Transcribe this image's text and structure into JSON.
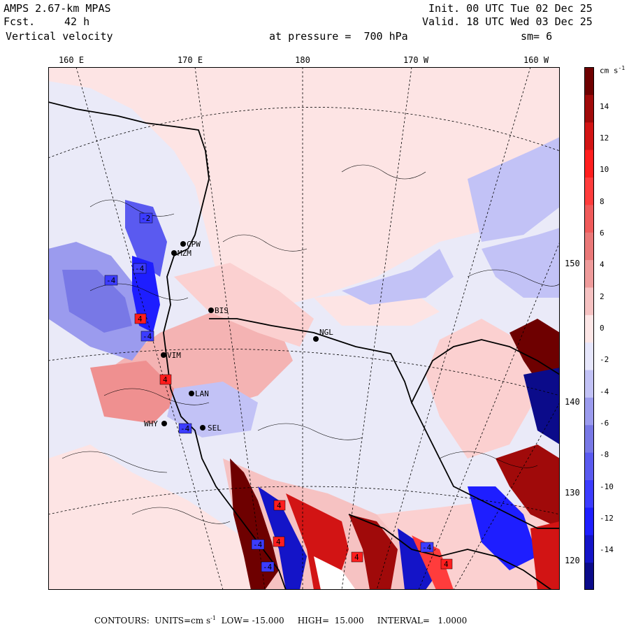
{
  "header": {
    "model": "AMPS 2.67-km MPAS",
    "forecast_label": "Fcst.",
    "forecast_value": "42 h",
    "field": "Vertical velocity",
    "init": "Init. 00 UTC Tue 02 Dec 25",
    "valid": "Valid. 18 UTC Wed 03 Dec 25",
    "pressure": "at pressure =  700 hPa",
    "smoothing": "sm= 6"
  },
  "longitude_labels": [
    "160 E",
    "170 E",
    "180",
    "170 W",
    "160 W"
  ],
  "latitude_labels": [
    "150 W",
    "140 W",
    "130 W",
    "120 W"
  ],
  "stations": [
    {
      "code": "CPW"
    },
    {
      "code": "MZM"
    },
    {
      "code": "BIS"
    },
    {
      "code": "NGL"
    },
    {
      "code": "VIM"
    },
    {
      "code": "LAN"
    },
    {
      "code": "WHY"
    },
    {
      "code": "SEL"
    }
  ],
  "highs_lows": [
    "-2",
    "-4",
    "-4",
    "-4",
    "4",
    "-4",
    "4",
    "4",
    "-4",
    "4",
    "4",
    "-4",
    "-4",
    "4"
  ],
  "colorbar": {
    "units": "cm s",
    "units_exp": "-1",
    "tick_labels": [
      "14",
      "12",
      "10",
      "8",
      "6",
      "4",
      "2",
      "0",
      "-2",
      "-4",
      "-6",
      "-8",
      "-10",
      "-12",
      "-14"
    ],
    "colors": [
      "#0b0b8a",
      "#1414c8",
      "#1e1eff",
      "#3c3cff",
      "#5a5af0",
      "#7878e6",
      "#9b9bee",
      "#c2c2f6",
      "#e6e6fb",
      "#fce6e6",
      "#f6c2c2",
      "#ef9b9b",
      "#ea7878",
      "#f05a5a",
      "#ff3c3c",
      "#ff1e1e",
      "#d21414",
      "#a00a0a",
      "#6e0000"
    ]
  },
  "footer": {
    "contours_label": "CONTOURS:",
    "units_label": "UNITS=cm s",
    "units_exp": "-1",
    "low": "LOW= -15.000",
    "high": "HIGH=  15.000",
    "interval": "INTERVAL=   1.0000"
  },
  "colors": {
    "frame": "#000000",
    "background_field": "#eaeaf8"
  }
}
